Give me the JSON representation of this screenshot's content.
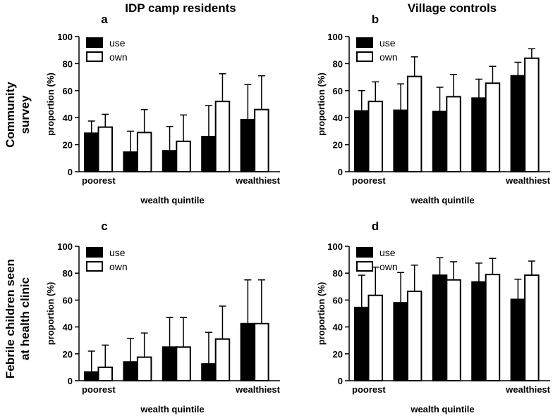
{
  "column_titles": [
    "IDP camp residents",
    "Village controls"
  ],
  "row_titles": [
    [
      "Community",
      "survey"
    ],
    [
      "Febrile children seen",
      "at health clinic"
    ]
  ],
  "colors": {
    "use": "#000000",
    "own": "#ffffff",
    "stroke": "#000000"
  },
  "chart_data": [
    {
      "panel": "a",
      "type": "bar",
      "xlabel": "wealth quintile",
      "ylabel": "proportion (%)",
      "ylim": [
        0,
        100
      ],
      "yticks": [
        0,
        20,
        40,
        60,
        80,
        100
      ],
      "categories": [
        "poorest",
        "",
        "",
        "",
        "wealthiest"
      ],
      "legend": "top-left",
      "series": [
        {
          "name": "use",
          "values": [
            28.5,
            14.5,
            15.5,
            26,
            38.5
          ],
          "err_upper": [
            37.5,
            30,
            33.5,
            49,
            64.5
          ]
        },
        {
          "name": "own",
          "values": [
            33,
            29,
            22.5,
            52,
            46
          ],
          "err_upper": [
            42.5,
            46,
            42,
            72.5,
            71
          ]
        }
      ]
    },
    {
      "panel": "b",
      "type": "bar",
      "xlabel": "wealth quintile",
      "ylabel": "proportion (%)",
      "ylim": [
        0,
        100
      ],
      "yticks": [
        0,
        20,
        40,
        60,
        80,
        100
      ],
      "categories": [
        "poorest",
        "",
        "",
        "",
        "wealthiest"
      ],
      "legend": "top-left",
      "series": [
        {
          "name": "use",
          "values": [
            45,
            45.5,
            44.5,
            54.5,
            71
          ],
          "err_upper": [
            60,
            65,
            62.5,
            68.5,
            81
          ]
        },
        {
          "name": "own",
          "values": [
            52,
            70.5,
            55.5,
            65.5,
            84
          ],
          "err_upper": [
            66.5,
            85,
            72,
            78,
            91
          ]
        }
      ]
    },
    {
      "panel": "c",
      "type": "bar",
      "xlabel": "wealth quintile",
      "ylabel": "proportion (%)",
      "ylim": [
        0,
        100
      ],
      "yticks": [
        0,
        20,
        40,
        60,
        80,
        100
      ],
      "categories": [
        "poorest",
        "",
        "",
        "",
        "wealthiest"
      ],
      "legend": "top-left",
      "series": [
        {
          "name": "use",
          "values": [
            6.5,
            14,
            25,
            12.5,
            42.5
          ],
          "err_upper": [
            22,
            31.5,
            47,
            36,
            75
          ]
        },
        {
          "name": "own",
          "values": [
            10,
            17.5,
            25,
            31,
            42.5
          ],
          "err_upper": [
            26.5,
            35.5,
            47,
            55.5,
            75
          ]
        }
      ]
    },
    {
      "panel": "d",
      "type": "bar",
      "xlabel": "wealth quintile",
      "ylabel": "proportion (%)",
      "ylim": [
        0,
        100
      ],
      "yticks": [
        0,
        20,
        40,
        60,
        80,
        100
      ],
      "categories": [
        "poorest",
        "",
        "",
        "",
        "wealthiest"
      ],
      "legend": "top-left",
      "series": [
        {
          "name": "use",
          "values": [
            54.5,
            58,
            78.5,
            73.5,
            60.5
          ],
          "err_upper": [
            78.5,
            80.5,
            91.5,
            87.5,
            75.5
          ]
        },
        {
          "name": "own",
          "values": [
            63.5,
            66.5,
            75,
            79,
            78.5
          ],
          "err_upper": [
            84.5,
            86,
            88.5,
            91,
            89
          ]
        }
      ]
    }
  ]
}
